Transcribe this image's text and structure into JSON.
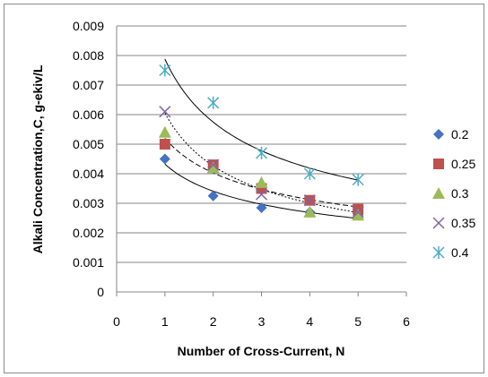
{
  "chart_data": {
    "type": "scatter",
    "title": "",
    "xlabel": "Number of Cross-Current, N",
    "ylabel": "Alkali Concentration,C, g-ekiv/L",
    "xlim": [
      0,
      6
    ],
    "ylim": [
      0,
      0.009
    ],
    "x_ticks": [
      "0",
      "1",
      "2",
      "3",
      "4",
      "5",
      "6"
    ],
    "y_ticks": [
      "0",
      "0.001",
      "0.002",
      "0.003",
      "0.004",
      "0.005",
      "0.006",
      "0.007",
      "0.008",
      "0.009"
    ],
    "grid": "horizontal",
    "legend_position": "right",
    "x": [
      1,
      2,
      3,
      4,
      5
    ],
    "series": [
      {
        "name": "0.2",
        "marker": "diamond",
        "color": "#4472C4",
        "values": [
          0.0045,
          0.00325,
          0.00285,
          0.0027,
          0.0026
        ],
        "trendline": "solid"
      },
      {
        "name": "0.25",
        "marker": "square",
        "color": "#C0504D",
        "values": [
          0.005,
          0.0043,
          0.0035,
          0.0031,
          0.0028
        ],
        "trendline": "dashed"
      },
      {
        "name": "0.3",
        "marker": "triangle",
        "color": "#9BBB59",
        "values": [
          0.0054,
          0.0042,
          0.0037,
          0.0027,
          0.0026
        ],
        "trendline": "none"
      },
      {
        "name": "0.35",
        "marker": "x",
        "color": "#8064A2",
        "values": [
          0.0061,
          0.0043,
          0.0033,
          0.0031,
          0.0027
        ],
        "trendline": "dotted"
      },
      {
        "name": "0.4",
        "marker": "star",
        "color": "#4BACC6",
        "values": [
          0.0075,
          0.0064,
          0.0047,
          0.004,
          0.0038
        ],
        "trendline": "solid"
      }
    ]
  }
}
